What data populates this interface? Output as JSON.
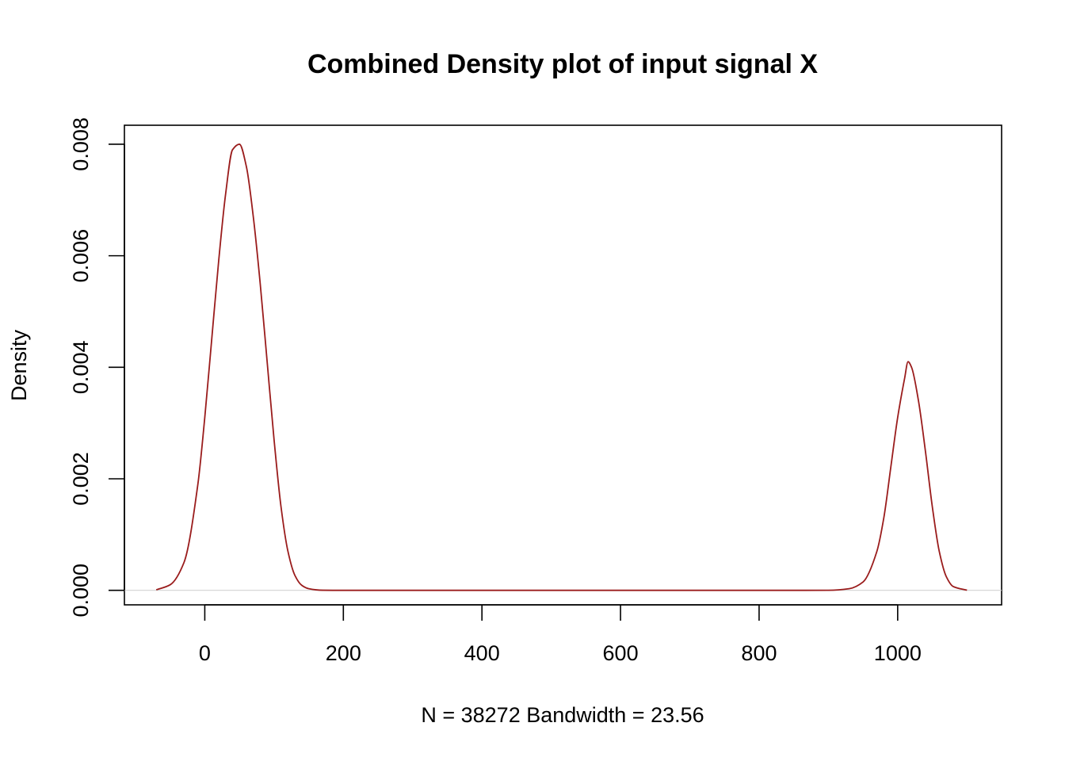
{
  "chart_data": {
    "type": "line",
    "title": "Combined Density plot of input signal X",
    "xlabel": "N = 38272   Bandwidth = 23.56",
    "ylabel": "Density",
    "xlim": [
      -116,
      1150
    ],
    "ylim": [
      -0.00026,
      0.00834
    ],
    "x_ticks": [
      "0",
      "200",
      "400",
      "600",
      "800",
      "1000"
    ],
    "x_tick_values": [
      0,
      200,
      400,
      600,
      800,
      1000
    ],
    "y_ticks": [
      "0.000",
      "0.002",
      "0.004",
      "0.006",
      "0.008"
    ],
    "y_tick_values": [
      0,
      0.002,
      0.004,
      0.006,
      0.008
    ],
    "grid": false,
    "baseline_y": 0,
    "colors": {
      "line": "#9a1c1c",
      "baseline": "#d3d3d3",
      "axis": "#000000"
    },
    "series": [
      {
        "x": [
          -70,
          -50,
          -30,
          -10,
          0,
          10,
          20,
          30,
          40,
          50,
          60,
          70,
          80,
          90,
          100,
          110,
          120,
          130,
          140,
          150,
          170,
          200,
          300,
          400,
          500,
          600,
          700,
          800,
          900,
          930,
          950,
          970,
          980,
          990,
          1000,
          1010,
          1015,
          1020,
          1030,
          1040,
          1050,
          1060,
          1070,
          1080,
          1100
        ],
        "y": [
          1e-05,
          0.0001,
          0.0005,
          0.0019,
          0.0031,
          0.0045,
          0.0059,
          0.0071,
          0.0079,
          0.008,
          0.0076,
          0.0067,
          0.0055,
          0.0041,
          0.0027,
          0.0015,
          0.0007,
          0.00027,
          9e-05,
          3e-05,
          2e-06,
          0,
          0,
          0,
          0,
          0,
          0,
          0,
          1e-06,
          3e-05,
          0.00015,
          0.0007,
          0.0013,
          0.0022,
          0.0031,
          0.0038,
          0.0041,
          0.004,
          0.0034,
          0.0025,
          0.0015,
          0.0007,
          0.00025,
          7e-05,
          3e-06
        ]
      }
    ]
  }
}
